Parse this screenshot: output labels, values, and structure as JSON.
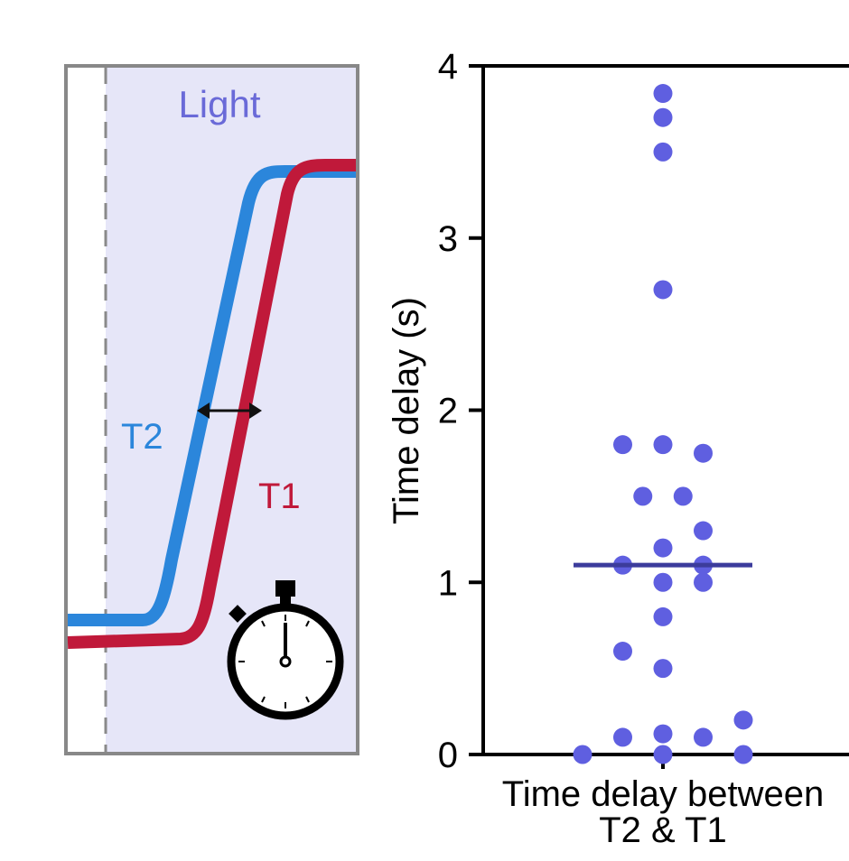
{
  "schematic": {
    "light_label": "Light",
    "t2_label": "T2",
    "t1_label": "T1",
    "colors": {
      "panel_fill": "#e6e6f8",
      "panel_border": "#888888",
      "light_text": "#6a6ad8",
      "t2": "#2b86db",
      "t1": "#c0193a"
    },
    "icons": [
      "double-arrow-icon",
      "stopwatch-icon"
    ]
  },
  "chart_data": {
    "type": "scatter",
    "ylabel": "Time delay (s)",
    "xlabel_lines": [
      "Time delay between",
      "T2 & T1"
    ],
    "categories": [
      "Time delay between T2 & T1"
    ],
    "ylim": [
      0,
      4
    ],
    "yticks": [
      "0",
      "1",
      "2",
      "3",
      "4"
    ],
    "point_color": "#5f5fe0",
    "median_color": "#3c3c9c",
    "median": 1.1,
    "points": [
      {
        "x": 0,
        "y": 3.84
      },
      {
        "x": 0,
        "y": 3.7
      },
      {
        "x": 0,
        "y": 3.5
      },
      {
        "x": 0,
        "y": 2.7
      },
      {
        "x": -1,
        "y": 1.8
      },
      {
        "x": 0,
        "y": 1.8
      },
      {
        "x": 1,
        "y": 1.75
      },
      {
        "x": -0.5,
        "y": 1.5
      },
      {
        "x": 0.5,
        "y": 1.5
      },
      {
        "x": 1,
        "y": 1.3
      },
      {
        "x": 0,
        "y": 1.2
      },
      {
        "x": -1,
        "y": 1.1
      },
      {
        "x": 1,
        "y": 1.1
      },
      {
        "x": 0,
        "y": 1.0
      },
      {
        "x": 1,
        "y": 1.0
      },
      {
        "x": 0,
        "y": 0.8
      },
      {
        "x": -1,
        "y": 0.6
      },
      {
        "x": 0,
        "y": 0.5
      },
      {
        "x": 2,
        "y": 0.2
      },
      {
        "x": 0,
        "y": 0.12
      },
      {
        "x": -1,
        "y": 0.1
      },
      {
        "x": 1,
        "y": 0.1
      },
      {
        "x": -2,
        "y": 0
      },
      {
        "x": 0,
        "y": 0
      },
      {
        "x": 2,
        "y": 0
      }
    ]
  }
}
